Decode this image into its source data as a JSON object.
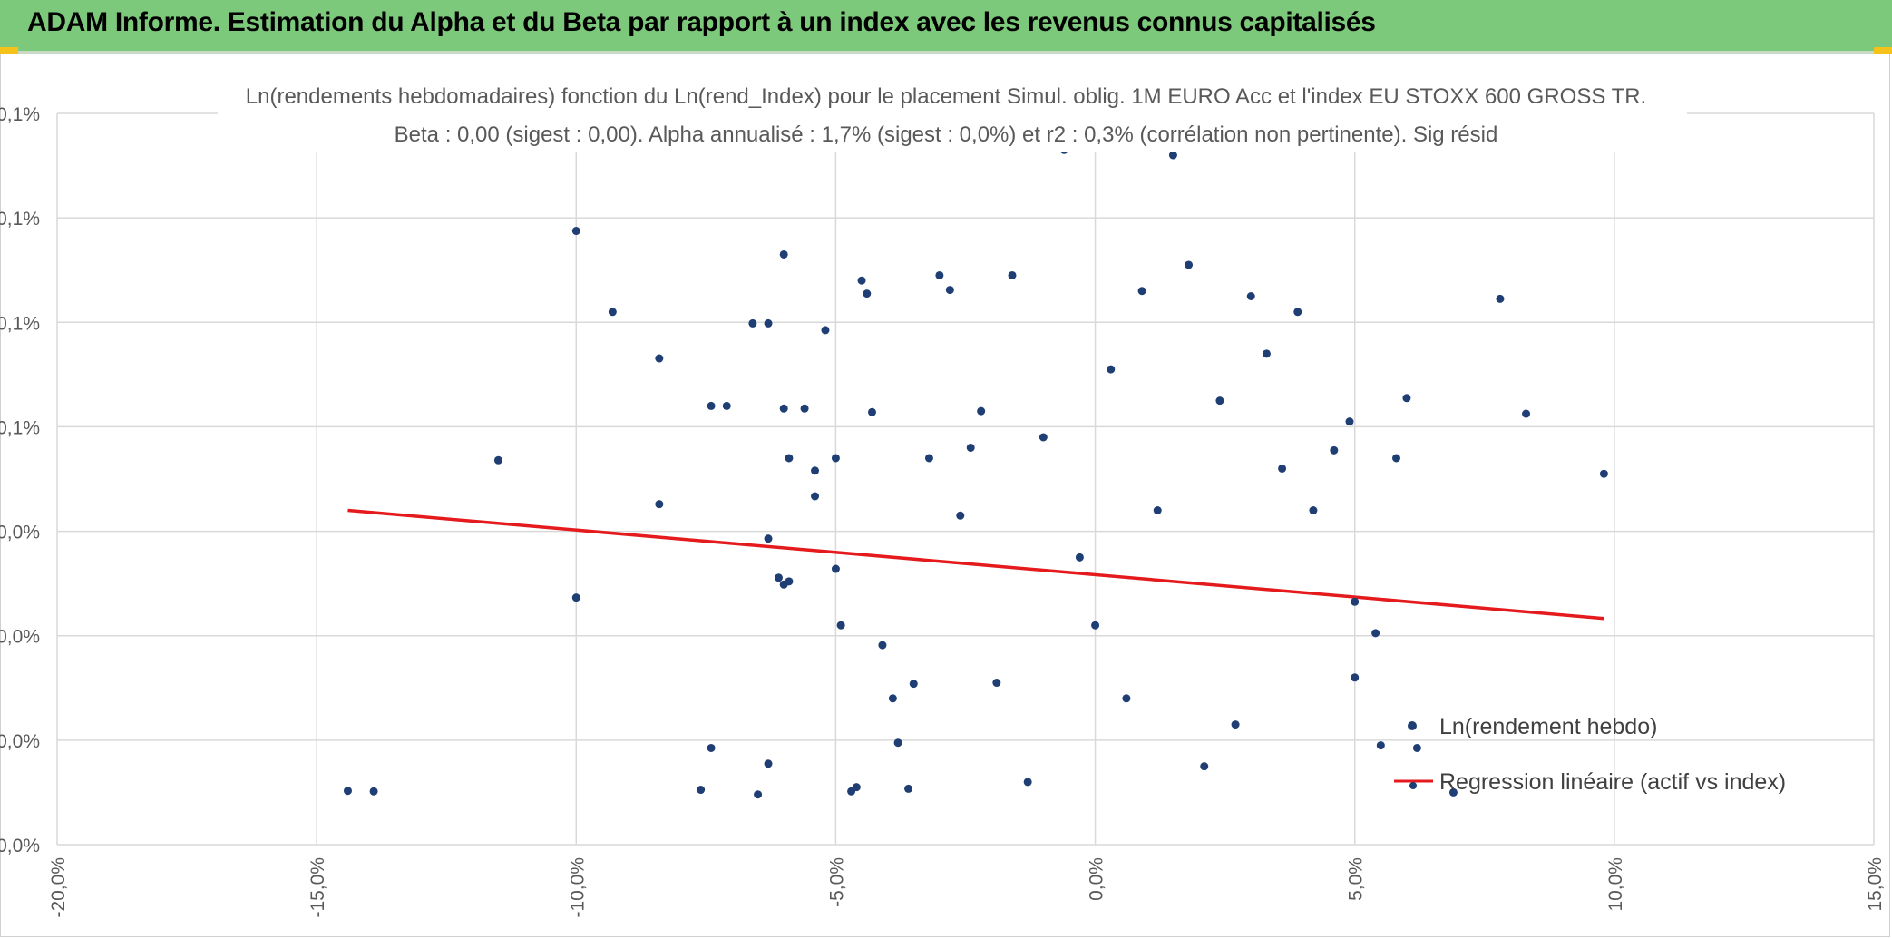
{
  "header": {
    "title": "ADAM Informe. Estimation du Alpha et du Beta par rapport à un index avec les revenus connus capitalisés"
  },
  "colors": {
    "header_bg": "#7dc97b",
    "accent_marks": "#f4c21b",
    "points": "#1f3f74",
    "regression": "#e41a1c",
    "grid": "#d9d9d9",
    "axis_text": "#595959"
  },
  "chart_data": {
    "type": "scatter",
    "title": "Ln(rendements hebdomadaires) fonction du Ln(rend_Index) pour le placement Simul. oblig. 1M EURO Acc et l'index EU STOXX 600 GROSS TR.",
    "subtitle": "Beta : 0,00 (sigest : 0,00). Alpha annualisé : 1,7% (sigest : 0,0%) et r2 : 0,3% (corrélation non pertinente). Sig résid",
    "xlabel": "",
    "ylabel": "",
    "x_unit": "%",
    "xlim": [
      -20,
      15
    ],
    "ylim": [
      0,
      0.14
    ],
    "x_ticks": [
      -20,
      -15,
      -10,
      -5,
      0,
      5,
      10,
      15
    ],
    "x_tick_labels": [
      "-20,0%",
      "-15,0%",
      "-10,0%",
      "-5,0%",
      "0,0%",
      "5,0%",
      "10,0%",
      "15,0%"
    ],
    "y_ticks": [
      0,
      0.02,
      0.04,
      0.06,
      0.08,
      0.1,
      0.12,
      0.14
    ],
    "y_tick_labels": [
      "0,0%",
      "0,0%",
      "0,0%",
      "0,0%",
      "0,1%",
      "0,1%",
      "0,1%",
      "0,1%"
    ],
    "grid": true,
    "legend": {
      "position": "bottom-right",
      "entries": [
        "Ln(rendement hebdo)",
        "Regression linéaire (actif vs index)"
      ]
    },
    "series": [
      {
        "name": "Ln(rendement hebdo)",
        "type": "scatter",
        "points": [
          [
            -14.4,
            0.0103
          ],
          [
            -13.9,
            0.0102
          ],
          [
            -11.5,
            0.0736
          ],
          [
            -10.0,
            0.1175
          ],
          [
            -10.0,
            0.0473
          ],
          [
            -9.3,
            0.102
          ],
          [
            -8.4,
            0.0931
          ],
          [
            -8.4,
            0.0652
          ],
          [
            -7.6,
            0.0105
          ],
          [
            -7.4,
            0.0185
          ],
          [
            -7.4,
            0.084
          ],
          [
            -7.1,
            0.084
          ],
          [
            -6.6,
            0.0998
          ],
          [
            -6.5,
            0.0096
          ],
          [
            -6.3,
            0.0998
          ],
          [
            -6.3,
            0.0155
          ],
          [
            -6.3,
            0.0586
          ],
          [
            -6.1,
            0.0511
          ],
          [
            -6.0,
            0.0498
          ],
          [
            -5.9,
            0.0504
          ],
          [
            -6.0,
            0.113
          ],
          [
            -6.0,
            0.0835
          ],
          [
            -5.9,
            0.074
          ],
          [
            -5.6,
            0.0835
          ],
          [
            -5.4,
            0.0716
          ],
          [
            -5.4,
            0.0667
          ],
          [
            -5.2,
            0.0985
          ],
          [
            -5.0,
            0.074
          ],
          [
            -5.0,
            0.0528
          ],
          [
            -4.9,
            0.042
          ],
          [
            -4.7,
            0.0102
          ],
          [
            -4.6,
            0.011
          ],
          [
            -4.5,
            0.108
          ],
          [
            -4.4,
            0.1055
          ],
          [
            -4.3,
            0.0828
          ],
          [
            -4.1,
            0.0382
          ],
          [
            -3.9,
            0.028
          ],
          [
            -3.8,
            0.0195
          ],
          [
            -3.6,
            0.0107
          ],
          [
            -3.5,
            0.0308
          ],
          [
            -3.2,
            0.074
          ],
          [
            -3.0,
            0.109
          ],
          [
            -2.8,
            0.1062
          ],
          [
            -2.6,
            0.063
          ],
          [
            -2.4,
            0.076
          ],
          [
            -2.2,
            0.083
          ],
          [
            -1.9,
            0.031
          ],
          [
            -1.6,
            0.109
          ],
          [
            -1.3,
            0.012
          ],
          [
            -1.0,
            0.078
          ],
          [
            -0.6,
            0.133
          ],
          [
            -0.3,
            0.055
          ],
          [
            0.0,
            0.042
          ],
          [
            0.3,
            0.091
          ],
          [
            0.6,
            0.028
          ],
          [
            0.9,
            0.106
          ],
          [
            1.2,
            0.064
          ],
          [
            1.5,
            0.132
          ],
          [
            1.8,
            0.111
          ],
          [
            2.1,
            0.015
          ],
          [
            2.4,
            0.085
          ],
          [
            2.7,
            0.023
          ],
          [
            3.0,
            0.105
          ],
          [
            3.3,
            0.094
          ],
          [
            3.6,
            0.072
          ],
          [
            3.9,
            0.102
          ],
          [
            4.2,
            0.064
          ],
          [
            4.6,
            0.0755
          ],
          [
            4.9,
            0.081
          ],
          [
            5.0,
            0.032
          ],
          [
            5.0,
            0.0465
          ],
          [
            5.4,
            0.0405
          ],
          [
            5.5,
            0.019
          ],
          [
            5.8,
            0.074
          ],
          [
            6.0,
            0.0855
          ],
          [
            6.2,
            0.0185
          ],
          [
            6.9,
            0.01
          ],
          [
            7.8,
            0.1045
          ],
          [
            8.3,
            0.0825
          ],
          [
            9.8,
            0.071
          ]
        ]
      },
      {
        "name": "Regression linéaire (actif vs index)",
        "type": "line",
        "points": [
          [
            -14.4,
            0.064
          ],
          [
            9.8,
            0.0433
          ]
        ]
      }
    ]
  }
}
